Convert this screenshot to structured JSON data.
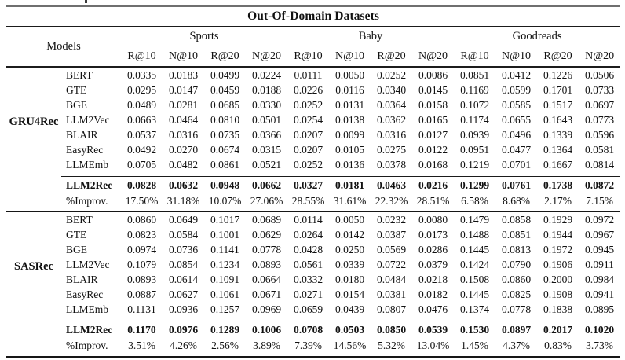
{
  "table": {
    "title": "Out-Of-Domain Datasets",
    "models_header": "Models",
    "groups": [
      "Sports",
      "Baby",
      "Goodreads"
    ],
    "metrics": [
      "R@10",
      "N@10",
      "R@20",
      "N@20"
    ],
    "sections": [
      {
        "name": "GRU4Rec",
        "rows": [
          {
            "model": "BERT",
            "values": [
              "0.0335",
              "0.0183",
              "0.0499",
              "0.0224",
              "0.0111",
              "0.0050",
              "0.0252",
              "0.0086",
              "0.0851",
              "0.0412",
              "0.1226",
              "0.0506"
            ]
          },
          {
            "model": "GTE",
            "values": [
              "0.0295",
              "0.0147",
              "0.0459",
              "0.0188",
              "0.0226",
              "0.0116",
              "0.0340",
              "0.0145",
              "0.1169",
              "0.0599",
              "0.1701",
              "0.0733"
            ]
          },
          {
            "model": "BGE",
            "values": [
              "0.0489",
              "0.0281",
              "0.0685",
              "0.0330",
              "0.0252",
              "0.0131",
              "0.0364",
              "0.0158",
              "0.1072",
              "0.0585",
              "0.1517",
              "0.0697"
            ]
          },
          {
            "model": "LLM2Vec",
            "values": [
              "0.0663",
              "0.0464",
              "0.0810",
              "0.0501",
              "0.0254",
              "0.0138",
              "0.0362",
              "0.0165",
              "0.1174",
              "0.0655",
              "0.1643",
              "0.0773"
            ]
          },
          {
            "model": "BLAIR",
            "values": [
              "0.0537",
              "0.0316",
              "0.0735",
              "0.0366",
              "0.0207",
              "0.0099",
              "0.0316",
              "0.0127",
              "0.0939",
              "0.0496",
              "0.1339",
              "0.0596"
            ]
          },
          {
            "model": "EasyRec",
            "values": [
              "0.0492",
              "0.0270",
              "0.0674",
              "0.0315",
              "0.0207",
              "0.0105",
              "0.0275",
              "0.0122",
              "0.0951",
              "0.0477",
              "0.1364",
              "0.0581"
            ]
          },
          {
            "model": "LLMEmb",
            "values": [
              "0.0705",
              "0.0482",
              "0.0861",
              "0.0521",
              "0.0252",
              "0.0136",
              "0.0378",
              "0.0168",
              "0.1219",
              "0.0701",
              "0.1667",
              "0.0814"
            ]
          }
        ],
        "highlight_row": {
          "model": "LLM2Rec",
          "values": [
            "0.0828",
            "0.0632",
            "0.0948",
            "0.0662",
            "0.0327",
            "0.0181",
            "0.0463",
            "0.0216",
            "0.1299",
            "0.0761",
            "0.1738",
            "0.0872"
          ]
        },
        "improv_row": {
          "model": "%Improv.",
          "values": [
            "17.50%",
            "31.18%",
            "10.07%",
            "27.06%",
            "28.55%",
            "31.61%",
            "22.32%",
            "28.51%",
            "6.58%",
            "8.68%",
            "2.17%",
            "7.15%"
          ]
        }
      },
      {
        "name": "SASRec",
        "rows": [
          {
            "model": "BERT",
            "values": [
              "0.0860",
              "0.0649",
              "0.1017",
              "0.0689",
              "0.0114",
              "0.0050",
              "0.0232",
              "0.0080",
              "0.1479",
              "0.0858",
              "0.1929",
              "0.0972"
            ]
          },
          {
            "model": "GTE",
            "values": [
              "0.0823",
              "0.0584",
              "0.1001",
              "0.0629",
              "0.0264",
              "0.0142",
              "0.0387",
              "0.0173",
              "0.1488",
              "0.0851",
              "0.1944",
              "0.0967"
            ]
          },
          {
            "model": "BGE",
            "values": [
              "0.0974",
              "0.0736",
              "0.1141",
              "0.0778",
              "0.0428",
              "0.0250",
              "0.0569",
              "0.0286",
              "0.1445",
              "0.0813",
              "0.1972",
              "0.0945"
            ]
          },
          {
            "model": "LLM2Vec",
            "values": [
              "0.1079",
              "0.0854",
              "0.1234",
              "0.0893",
              "0.0561",
              "0.0339",
              "0.0722",
              "0.0379",
              "0.1424",
              "0.0790",
              "0.1906",
              "0.0911"
            ]
          },
          {
            "model": "BLAIR",
            "values": [
              "0.0893",
              "0.0614",
              "0.1091",
              "0.0664",
              "0.0332",
              "0.0180",
              "0.0484",
              "0.0218",
              "0.1508",
              "0.0860",
              "0.2000",
              "0.0984"
            ]
          },
          {
            "model": "EasyRec",
            "values": [
              "0.0887",
              "0.0627",
              "0.1061",
              "0.0671",
              "0.0271",
              "0.0154",
              "0.0381",
              "0.0182",
              "0.1445",
              "0.0825",
              "0.1908",
              "0.0941"
            ]
          },
          {
            "model": "LLMEmb",
            "values": [
              "0.1131",
              "0.0936",
              "0.1257",
              "0.0969",
              "0.0659",
              "0.0439",
              "0.0807",
              "0.0476",
              "0.1374",
              "0.0778",
              "0.1838",
              "0.0895"
            ]
          }
        ],
        "highlight_row": {
          "model": "LLM2Rec",
          "values": [
            "0.1170",
            "0.0976",
            "0.1289",
            "0.1006",
            "0.0708",
            "0.0503",
            "0.0850",
            "0.0539",
            "0.1530",
            "0.0897",
            "0.2017",
            "0.1020"
          ]
        },
        "improv_row": {
          "model": "%Improv.",
          "values": [
            "3.51%",
            "4.26%",
            "2.56%",
            "3.89%",
            "7.39%",
            "14.56%",
            "5.32%",
            "13.04%",
            "1.45%",
            "4.37%",
            "0.83%",
            "3.73%"
          ]
        }
      }
    ]
  }
}
